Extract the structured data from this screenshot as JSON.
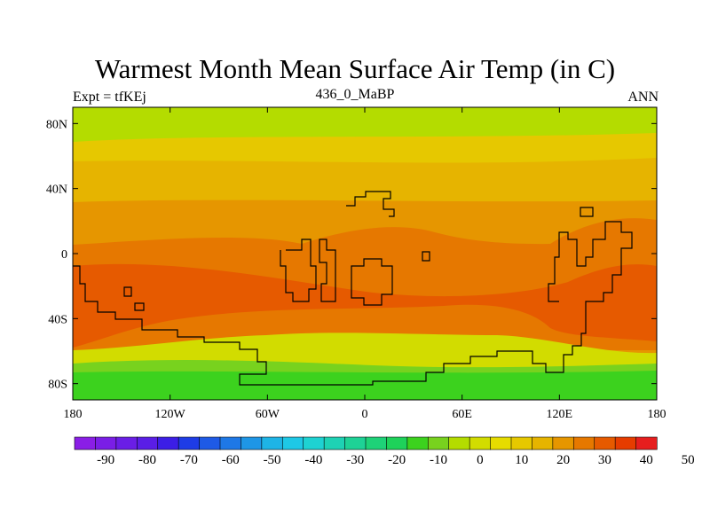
{
  "title": "Warmest Month Mean Surface Air Temp (in C)",
  "left_string": "Expt = tfKEj",
  "center_string": "436_0_MaBP",
  "right_string": "ANN",
  "lat_labels": [
    "80N",
    "40N",
    "0",
    "40S",
    "80S"
  ],
  "lon_labels": [
    "180",
    "120W",
    "60W",
    "0",
    "60E",
    "120E",
    "180"
  ],
  "colorbar": {
    "labels": [
      "-90",
      "-80",
      "-70",
      "-60",
      "-50",
      "-40",
      "-30",
      "-20",
      "-10",
      "0",
      "10",
      "20",
      "30",
      "40",
      "50"
    ],
    "colors": [
      "#8a1ee6",
      "#7a1ee6",
      "#6a1ee6",
      "#5a1ee6",
      "#3c1ee6",
      "#1e3ce6",
      "#1e5ae6",
      "#1e78e6",
      "#1e96e6",
      "#1eb4e6",
      "#1ec8e6",
      "#1ed2d2",
      "#1ed2b4",
      "#1ed296",
      "#1ed278",
      "#1ed25a",
      "#3cd21e",
      "#78d21e",
      "#b4dc00",
      "#d2dc00",
      "#e6dc00",
      "#e6c800",
      "#e6b400",
      "#e69600",
      "#e67800",
      "#e65a00",
      "#e63c00",
      "#e61e1e"
    ]
  },
  "map_colors": {
    "arctic_band": "#b4dc00",
    "subpolar_band": "#e6c800",
    "midlat_band": "#e6b400",
    "warm_band": "#e69600",
    "hot_band": "#e67800",
    "hottest_band": "#e65a00",
    "south_mid": "#d2dc00",
    "south_polar": "#3cd21e",
    "south_cold": "#78d21e"
  }
}
